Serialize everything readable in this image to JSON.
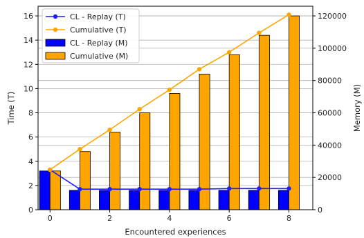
{
  "chart_data": {
    "type": "bar",
    "x": [
      0,
      1,
      2,
      3,
      4,
      5,
      6,
      7,
      8
    ],
    "xlabel": "Encountered experiences",
    "ylabel_left": "Time (T)",
    "ylabel_right": "Memory (M)",
    "xlim": [
      -0.4,
      8.8
    ],
    "ylim_left": [
      0,
      16.8
    ],
    "ylim_right": [
      0,
      126000
    ],
    "xticks": [
      0,
      2,
      4,
      6,
      8
    ],
    "yticks_left": [
      0,
      2,
      4,
      6,
      8,
      10,
      12,
      14,
      16
    ],
    "yticks_right": [
      0,
      20000,
      40000,
      60000,
      80000,
      100000,
      120000
    ],
    "grid": true,
    "legend_position": "top-left",
    "series": [
      {
        "name": "CL - Replay (T)",
        "kind": "line",
        "axis": "left",
        "color": "#1f1fff",
        "values": [
          3.3,
          1.7,
          1.7,
          1.7,
          1.7,
          1.7,
          1.75,
          1.75,
          1.75
        ]
      },
      {
        "name": "Cumulative (T)",
        "kind": "line",
        "axis": "left",
        "color": "#ffa500",
        "values": [
          3.3,
          5.0,
          6.6,
          8.3,
          9.9,
          11.6,
          13.0,
          14.6,
          16.1
        ]
      },
      {
        "name": "CL - Replay (M)",
        "kind": "bar",
        "axis": "right",
        "color": "#0000ff",
        "values": [
          24000,
          12000,
          12000,
          12000,
          12000,
          12000,
          12000,
          12000,
          12000
        ]
      },
      {
        "name": "Cumulative (M)",
        "kind": "bar",
        "axis": "right",
        "color": "#ffa500",
        "values": [
          24000,
          36000,
          48000,
          60000,
          72000,
          84000,
          96000,
          108000,
          120000
        ]
      }
    ]
  }
}
